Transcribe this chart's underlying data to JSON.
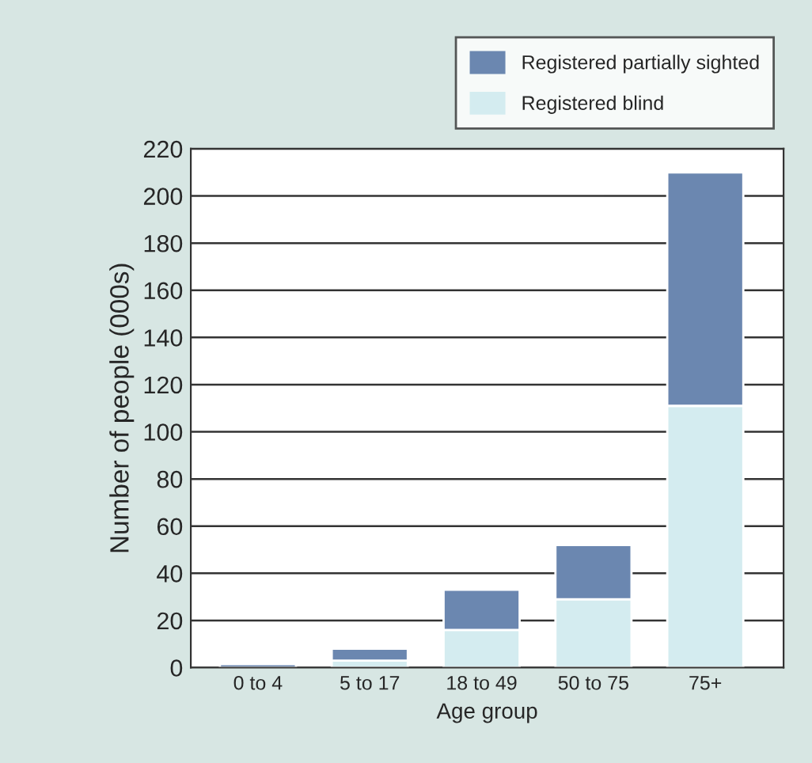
{
  "chart_data": {
    "type": "bar",
    "stacked": true,
    "xlabel": "Age group",
    "ylabel": "Number of people (000s)",
    "categories": [
      "0 to 4",
      "5 to 17",
      "18 to 49",
      "50 to 75",
      "75+"
    ],
    "series": [
      {
        "name": "Registered blind",
        "color": "#d4ecf0",
        "values": [
          null,
          3,
          16,
          29,
          111
        ]
      },
      {
        "name": "Registered partially sighted",
        "color": "#6b87b0",
        "values": [
          1.5,
          5,
          17,
          23,
          99
        ]
      }
    ],
    "ylim": [
      0,
      220
    ],
    "yticks": [
      0,
      20,
      40,
      60,
      80,
      100,
      120,
      140,
      160,
      180,
      200,
      220
    ],
    "grid": "y",
    "legend": "top right"
  }
}
